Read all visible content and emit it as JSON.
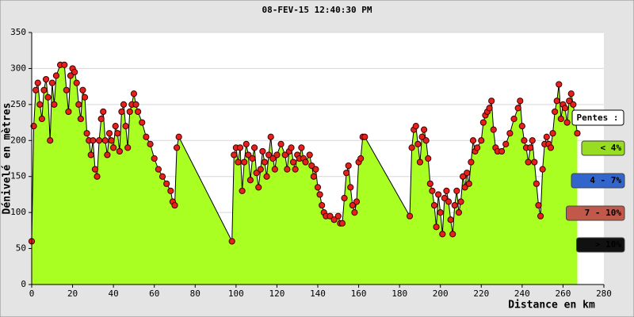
{
  "chart_data": {
    "type": "area-profile",
    "title": "08-FEV-15 12:40:30 PM",
    "x_label": "Distance en km",
    "y_label": "Dénivelé en mètres",
    "x": [
      0,
      1,
      2,
      3,
      4,
      5,
      6,
      7,
      8,
      9,
      10,
      11,
      12,
      14,
      16,
      17,
      18,
      19,
      20,
      21,
      22,
      23,
      24,
      25,
      26,
      27,
      28,
      29,
      30,
      31,
      32,
      33,
      34,
      35,
      36,
      37,
      38,
      39,
      40,
      41,
      42,
      43,
      44,
      45,
      46,
      47,
      48,
      49,
      50,
      51,
      52,
      54,
      56,
      58,
      60,
      62,
      64,
      66,
      68,
      69,
      70,
      71,
      72,
      98,
      99,
      100,
      101,
      102,
      103,
      104,
      105,
      106,
      107,
      108,
      109,
      110,
      111,
      112,
      113,
      114,
      115,
      116,
      117,
      118,
      119,
      120,
      122,
      124,
      125,
      126,
      127,
      128,
      129,
      130,
      131,
      132,
      133,
      134,
      136,
      137,
      138,
      139,
      140,
      141,
      142,
      143,
      144,
      146,
      148,
      150,
      151,
      152,
      153,
      154,
      155,
      156,
      157,
      158,
      159,
      160,
      161,
      162,
      163,
      185,
      186,
      187,
      188,
      189,
      190,
      191,
      192,
      193,
      194,
      195,
      196,
      197,
      198,
      199,
      200,
      201,
      202,
      203,
      204,
      205,
      206,
      207,
      208,
      209,
      210,
      211,
      212,
      213,
      214,
      215,
      216,
      217,
      218,
      220,
      221,
      222,
      223,
      224,
      225,
      226,
      227,
      228,
      230,
      232,
      234,
      236,
      238,
      239,
      240,
      241,
      242,
      243,
      244,
      245,
      246,
      247,
      248,
      249,
      250,
      251,
      252,
      253,
      254,
      255,
      256,
      257,
      258,
      259,
      260,
      261,
      262,
      263,
      264,
      265,
      266,
      267
    ],
    "values": [
      60,
      220,
      270,
      280,
      250,
      230,
      270,
      285,
      260,
      200,
      280,
      250,
      290,
      305,
      305,
      270,
      240,
      290,
      300,
      295,
      280,
      250,
      230,
      270,
      260,
      210,
      200,
      180,
      200,
      160,
      150,
      200,
      230,
      240,
      200,
      180,
      210,
      200,
      190,
      220,
      210,
      185,
      240,
      250,
      220,
      190,
      240,
      250,
      265,
      250,
      240,
      225,
      205,
      195,
      175,
      160,
      150,
      140,
      130,
      115,
      110,
      190,
      205,
      60,
      180,
      190,
      170,
      190,
      130,
      170,
      195,
      180,
      145,
      175,
      190,
      155,
      135,
      160,
      185,
      170,
      150,
      180,
      205,
      175,
      160,
      180,
      195,
      180,
      160,
      185,
      190,
      170,
      160,
      180,
      175,
      190,
      175,
      170,
      180,
      165,
      150,
      160,
      135,
      125,
      110,
      100,
      95,
      95,
      90,
      95,
      85,
      85,
      120,
      155,
      165,
      135,
      110,
      100,
      115,
      170,
      175,
      205,
      205,
      95,
      190,
      215,
      220,
      195,
      170,
      205,
      215,
      200,
      175,
      140,
      130,
      110,
      80,
      125,
      100,
      70,
      120,
      130,
      115,
      90,
      70,
      110,
      130,
      100,
      115,
      150,
      135,
      155,
      140,
      170,
      200,
      185,
      190,
      200,
      225,
      235,
      240,
      245,
      255,
      215,
      190,
      185,
      185,
      195,
      210,
      230,
      245,
      255,
      220,
      200,
      190,
      170,
      190,
      200,
      170,
      140,
      110,
      95,
      160,
      195,
      205,
      195,
      190,
      210,
      240,
      255,
      278,
      230,
      250,
      245,
      225,
      255,
      265,
      250,
      230,
      210
    ],
    "fill_color": "#aaff22",
    "line_color": "#000000",
    "marker_color": "#e8201c",
    "xlim": [
      0,
      280
    ],
    "xticks": [
      0,
      20,
      40,
      60,
      80,
      100,
      120,
      140,
      160,
      180,
      200,
      220,
      240,
      260,
      280
    ],
    "ylim": [
      0,
      350
    ],
    "yticks": [
      0,
      50,
      100,
      150,
      200,
      250,
      300,
      350
    ],
    "grid": true,
    "legend_title": "Pentes :",
    "slope_classes": [
      {
        "label": "< 4%",
        "color": "#99dd22"
      },
      {
        "label": "4 - 7%",
        "color": "#3366cc"
      },
      {
        "label": "7 - 10%",
        "color": "#c0594a"
      },
      {
        "label": "> 10%",
        "color": "#111111"
      }
    ]
  }
}
